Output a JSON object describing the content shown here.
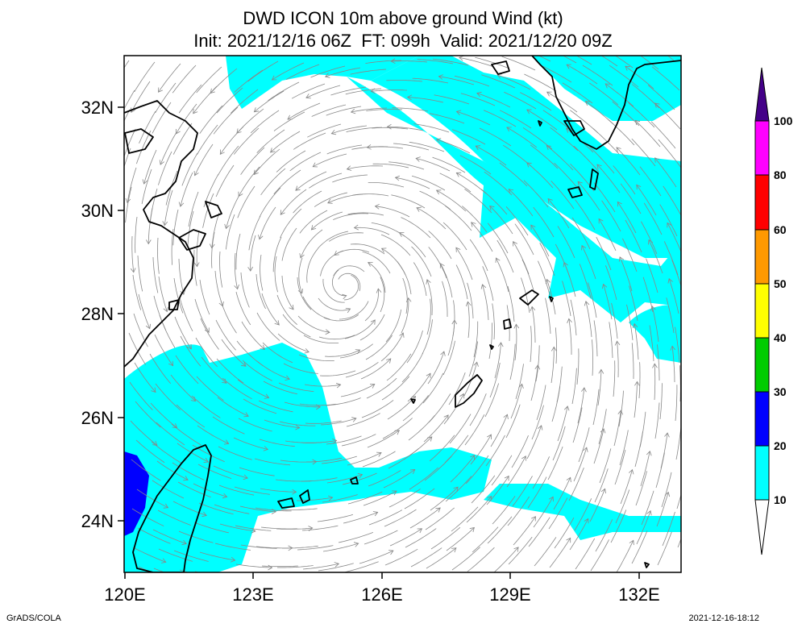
{
  "title": {
    "line1": "DWD ICON 10m above ground Wind (kt)",
    "line2": "Init: 2021/12/16 06Z  FT: 099h  Valid: 2021/12/20 09Z"
  },
  "axes": {
    "lat_labels": [
      "32N",
      "30N",
      "28N",
      "26N",
      "24N"
    ],
    "lon_labels": [
      "120E",
      "123E",
      "126E",
      "129E",
      "132E"
    ]
  },
  "colorbar": {
    "levels": [
      "10",
      "20",
      "30",
      "40",
      "50",
      "60",
      "80",
      "100"
    ],
    "colors": [
      "#ffffff",
      "#00ffff",
      "#0000ff",
      "#00cc00",
      "#ffff00",
      "#ff9900",
      "#ff0000",
      "#ff00ff",
      "#440088"
    ]
  },
  "colors": {
    "cyan": "#00ffff",
    "blue": "#0000ff",
    "streamline": "#888888",
    "coast": "#000000"
  },
  "footer": {
    "left": "GrADS/COLA",
    "right": "2021-12-16-18:12"
  }
}
